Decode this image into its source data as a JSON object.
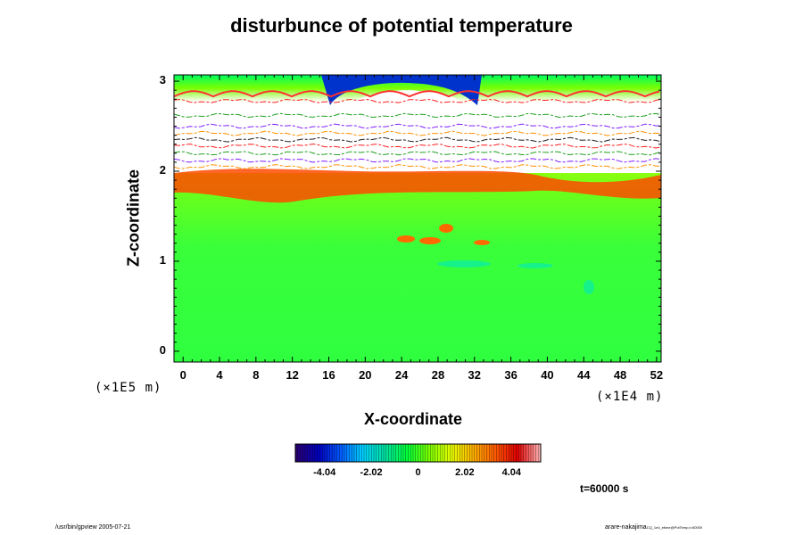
{
  "chart_data": {
    "type": "heatmap",
    "title": "disturbunce of potential temperature",
    "xlabel": "X-coordinate",
    "ylabel": "Z-coordinate",
    "x_unit": "(×1E4 m)",
    "y_unit": "(×1E5 m)",
    "xlim": [
      -1,
      52.5
    ],
    "ylim": [
      -0.12,
      3.07
    ],
    "x_ticks": [
      "0",
      "4",
      "8",
      "12",
      "16",
      "20",
      "24",
      "28",
      "32",
      "36",
      "40",
      "44",
      "48",
      "52"
    ],
    "y_ticks": [
      "0",
      "1",
      "2",
      "3"
    ],
    "colorbar": {
      "range": [
        -5.3,
        5.3
      ],
      "ticks": [
        "-4.04",
        "-2.02",
        "0",
        "2.02",
        "4.04"
      ],
      "colors": [
        "#2a0073",
        "#0000c0",
        "#005bff",
        "#00d0ff",
        "#00e0a0",
        "#00ff3a",
        "#7aff00",
        "#e6ff00",
        "#ffb000",
        "#ff5a00",
        "#e00000",
        "#ffb0b0"
      ]
    },
    "time_label": "t=60000 s",
    "grid": false
  },
  "footer": {
    "left": "/usr/bin/gpview 2005-07-21",
    "right": "arare-nakajima",
    "right_sub": "CQ_1e4_etime@PotTemp,t=60000"
  }
}
